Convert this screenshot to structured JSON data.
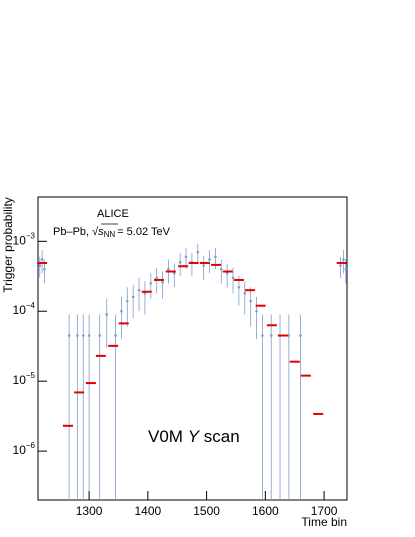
{
  "chart_data": {
    "type": "scatter",
    "y_label": "Trigger probability",
    "x_label": "Time bin",
    "annotations": {
      "experiment": "ALICE",
      "system": "Pb–Pb,",
      "root": "√",
      "s": "s",
      "sub": "NN",
      "energy": "= 5.02 TeV",
      "scan_a": "V0M",
      "scan_b": "Y",
      "scan_c": "scan"
    },
    "log_y": true,
    "xlim": [
      1213,
      1739
    ],
    "ylim": [
      2e-07,
      0.0043
    ],
    "xticks": [
      1300,
      1400,
      1500,
      1600,
      1700
    ],
    "yticks": [
      {
        "value": 0.001,
        "label": "10",
        "exponent": "−3"
      },
      {
        "value": 0.0001,
        "label": "10",
        "exponent": "−4"
      },
      {
        "value": 1e-05,
        "label": "10",
        "exponent": "−5"
      },
      {
        "value": 1e-06,
        "label": "10",
        "exponent": "−6"
      }
    ],
    "series": [
      {
        "color": "#7f9bd0",
        "x": [
          1216,
          1220,
          1224,
          1266,
          1280,
          1290,
          1300,
          1318,
          1330,
          1345,
          1355,
          1365,
          1375,
          1385,
          1395,
          1405,
          1415,
          1425,
          1435,
          1445,
          1455,
          1465,
          1475,
          1485,
          1495,
          1505,
          1515,
          1525,
          1535,
          1545,
          1555,
          1565,
          1575,
          1585,
          1595,
          1610,
          1625,
          1640,
          1660,
          1728,
          1733,
          1737
        ],
        "values": [
          0.00045,
          0.00055,
          0.0004,
          4.5e-05,
          4.5e-05,
          4.5e-05,
          4.5e-05,
          4.5e-05,
          9e-05,
          4.5e-05,
          0.0001,
          0.00014,
          0.00016,
          0.0002,
          0.00018,
          0.00025,
          0.0003,
          0.00026,
          0.0004,
          0.00035,
          0.0005,
          0.0006,
          0.0005,
          0.0007,
          0.00045,
          0.00055,
          0.0006,
          0.0004,
          0.00035,
          0.0003,
          0.00022,
          0.00018,
          0.00014,
          0.0001,
          4.5e-05,
          4.5e-05,
          4.5e-05,
          4.5e-05,
          4.5e-05,
          0.00045,
          0.00055,
          0.0004
        ],
        "errors": [
          0.00015,
          0.0002,
          0.00015,
          4.5e-05,
          4.5e-05,
          4.5e-05,
          4.5e-05,
          4.5e-05,
          6e-05,
          4.5e-05,
          6e-05,
          8e-05,
          8e-05,
          0.0001,
          9e-05,
          0.0001,
          0.00012,
          0.00011,
          0.00015,
          0.00013,
          0.00018,
          0.0002,
          0.00018,
          0.00022,
          0.00017,
          0.0002,
          0.0002,
          0.00015,
          0.00013,
          0.00012,
          0.0001,
          9e-05,
          8e-05,
          6e-05,
          4.5e-05,
          4.5e-05,
          4.5e-05,
          4.5e-05,
          4.5e-05,
          0.00015,
          0.0002,
          0.00015
        ]
      },
      {
        "color": "#e00000",
        "x": [
          1220,
          1264,
          1283,
          1303,
          1320,
          1341,
          1359,
          1398,
          1419,
          1439,
          1460,
          1478,
          1497,
          1516,
          1536,
          1555,
          1574,
          1592,
          1611,
          1630,
          1650,
          1669,
          1690,
          1730
        ],
        "values": [
          0.00049,
          2.3e-06,
          6.9e-06,
          9.4e-06,
          2.3e-05,
          3.2e-05,
          6.7e-05,
          0.00019,
          0.00028,
          0.00037,
          0.00044,
          0.00049,
          0.00049,
          0.00046,
          0.00037,
          0.00028,
          0.0002,
          0.00012,
          6.3e-05,
          4.5e-05,
          1.9e-05,
          1.2e-05,
          3.4e-06,
          0.00049
        ]
      }
    ]
  }
}
